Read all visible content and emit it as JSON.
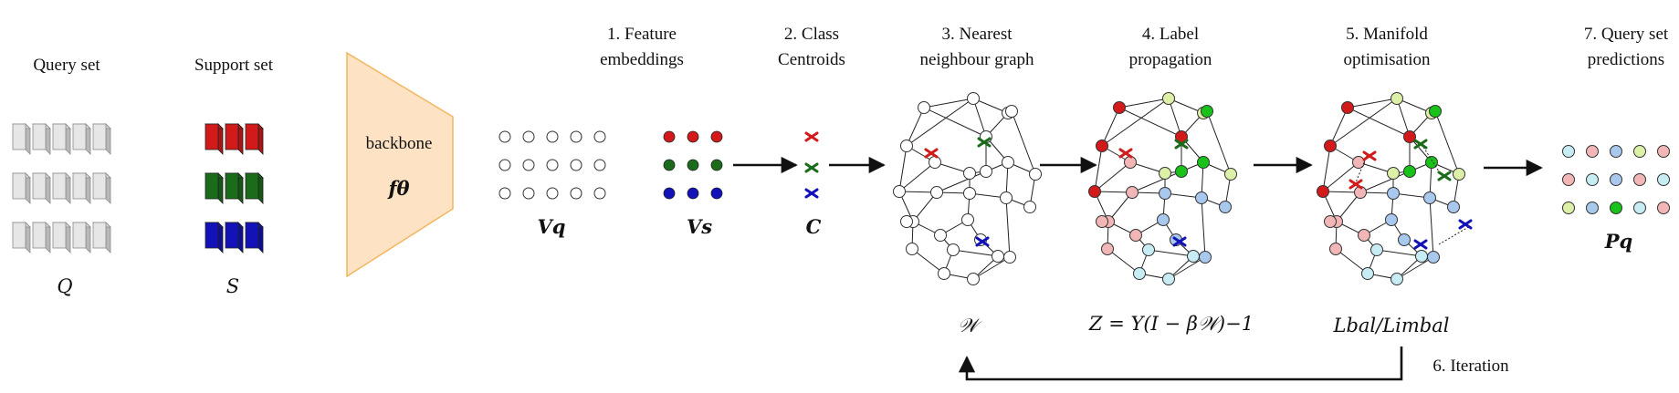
{
  "labels": {
    "query_set": "Query set",
    "support_set": "Support set",
    "backbone": "backbone",
    "backbone_symbol": "fθ",
    "query_symbol": "Q",
    "support_symbol": "S",
    "step1_line1": "1. Feature",
    "step1_line2": "embeddings",
    "step2_line1": "2. Class",
    "step2_line2": "Centroids",
    "step3_line1": "3. Nearest",
    "step3_line2": "neighbour graph",
    "step4_line1": "4. Label",
    "step4_line2": "propagation",
    "step5_line1": "5. Manifold",
    "step5_line2": "optimisation",
    "step7_line1": "7. Query set",
    "step7_line2": "predictions",
    "vq": "Vq",
    "vs": "Vs",
    "c": "C",
    "pq": "Pq",
    "w": "𝒲",
    "z_formula": "Z = Y(I − β𝒲)−1",
    "loss": "Lbal/Limbal",
    "iteration": "6. Iteration"
  },
  "colors": {
    "red": "#d21a1a",
    "green": "#1a6b1a",
    "blue": "#1212b8",
    "bright_green": "#19c219",
    "light_red": "#f2b6b6",
    "light_green": "#dcf0a8",
    "light_blue": "#a9c8ee",
    "light_cyan": "#c8ecf4",
    "backbone_fill": "#fde3c3",
    "backbone_stroke": "#f3b560"
  }
}
